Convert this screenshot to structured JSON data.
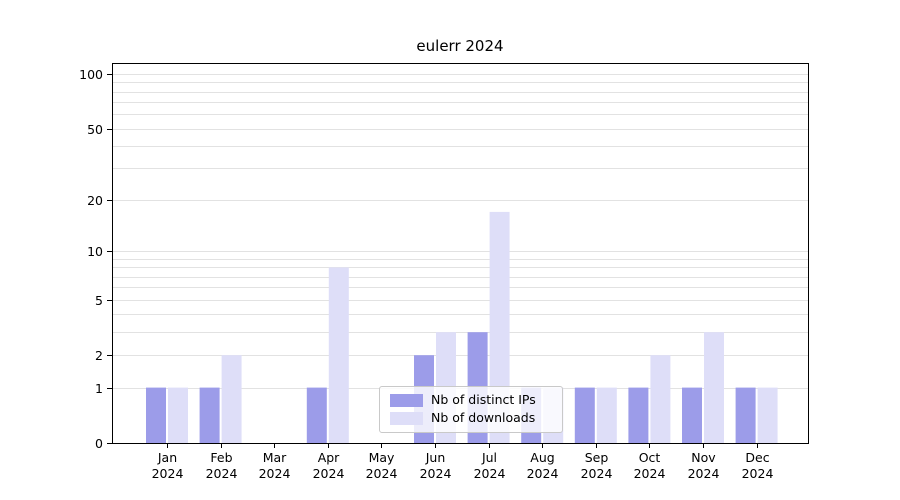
{
  "title": "eulerr 2024",
  "legend": {
    "items": [
      {
        "label": "Nb of distinct IPs",
        "color": "#9c9ce9"
      },
      {
        "label": "Nb of downloads",
        "color": "#dedef8"
      }
    ]
  },
  "chart_data": {
    "type": "bar",
    "title": "eulerr 2024",
    "categories": [
      "Jan 2024",
      "Feb 2024",
      "Mar 2024",
      "Apr 2024",
      "May 2024",
      "Jun 2024",
      "Jul 2024",
      "Aug 2024",
      "Sep 2024",
      "Oct 2024",
      "Nov 2024",
      "Dec 2024"
    ],
    "series": [
      {
        "name": "Nb of distinct IPs",
        "color": "#9c9ce9",
        "values": [
          1,
          1,
          0,
          1,
          0,
          2,
          3,
          1,
          1,
          1,
          1,
          1
        ]
      },
      {
        "name": "Nb of downloads",
        "color": "#dedef8",
        "values": [
          1,
          2,
          0,
          8,
          0,
          3,
          17,
          1,
          1,
          2,
          3,
          1
        ]
      }
    ],
    "xlabel": "",
    "ylabel": "",
    "yscale": "log1p",
    "yticks": [
      0,
      1,
      2,
      5,
      10,
      20,
      50,
      100
    ],
    "minor_gridlines": [
      1,
      2,
      3,
      4,
      5,
      6,
      7,
      8,
      9,
      10,
      20,
      30,
      40,
      50,
      60,
      70,
      80,
      90,
      100
    ],
    "ylim": [
      0,
      115
    ],
    "grid": "horizontal",
    "legend_position": "lower-center-inside"
  }
}
